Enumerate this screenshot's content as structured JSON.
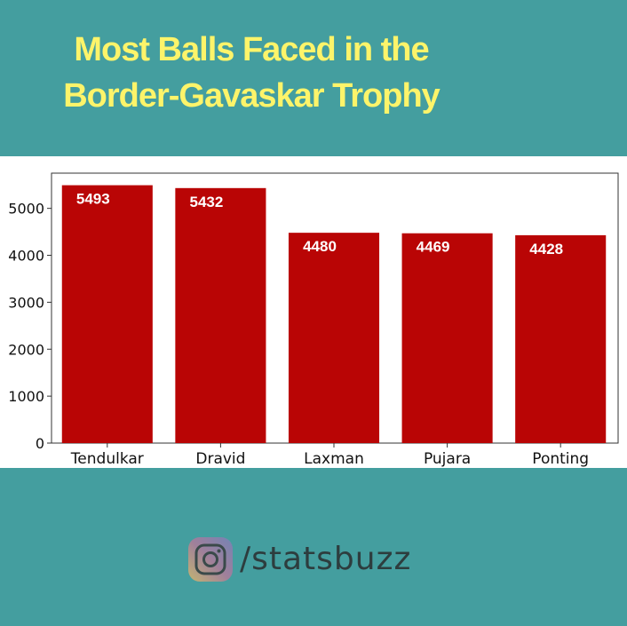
{
  "title_line1": "Most Balls Faced in the",
  "title_line2": "Border-Gavaskar Trophy",
  "handle": "/statsbuzz",
  "colors": {
    "background": "#449e9f",
    "title": "#fdf46a",
    "bar": "#b90505",
    "bar_label": "#ffffff",
    "handle": "#2d3d3e"
  },
  "chart_data": {
    "type": "bar",
    "categories": [
      "Tendulkar",
      "Dravid",
      "Laxman",
      "Pujara",
      "Ponting"
    ],
    "values": [
      5493,
      5432,
      4480,
      4469,
      4428
    ],
    "data_labels": [
      "5493",
      "5432",
      "4480",
      "4469",
      "4428"
    ],
    "title": "",
    "xlabel": "",
    "ylabel": "",
    "ylim": [
      0,
      5750
    ],
    "yticks": [
      0,
      1000,
      2000,
      3000,
      4000,
      5000
    ],
    "ytick_labels": [
      "0",
      "1000",
      "2000",
      "3000",
      "4000",
      "5000"
    ],
    "grid": false,
    "legend": false
  }
}
